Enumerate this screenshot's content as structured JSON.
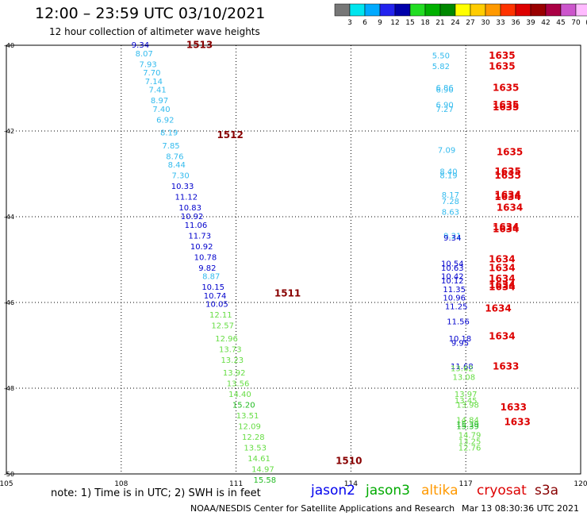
{
  "header": {
    "title": "12:00 – 23:59 UTC 03/10/2021",
    "subtitle": "12 hour collection of altimeter wave heights"
  },
  "footer": {
    "note": "note: 1) Time is in UTC; 2) SWH is in feet",
    "credit": "NOAA/NESDIS Center for Satellite Applications and Research",
    "timestamp": "Mar 13 08:30:36 UTC 2021",
    "satellites": [
      {
        "name": "jason2",
        "color": "#0000ee"
      },
      {
        "name": "jason3",
        "color": "#00aa00"
      },
      {
        "name": "altika",
        "color": "#ff9900"
      },
      {
        "name": "cryosat",
        "color": "#dd0000"
      },
      {
        "name": "s3a",
        "color": "#880000"
      }
    ]
  },
  "chart_data": {
    "type": "scatter",
    "xlim": [
      105,
      120
    ],
    "ylim": [
      -50,
      -40
    ],
    "x_ticks": [
      "105",
      "108",
      "111",
      "114",
      "117",
      "120"
    ],
    "y_ticks": [
      "-40",
      "-42",
      "-44",
      "-46",
      "-48",
      "-50"
    ],
    "grid": true,
    "legend": {
      "labels": [
        "3",
        "6",
        "9",
        "12",
        "15",
        "18",
        "21",
        "24",
        "27",
        "30",
        "33",
        "36",
        "39",
        "42",
        "45",
        "70",
        "(ft)"
      ],
      "colors": [
        "#777777",
        "#00e5ee",
        "#00aaff",
        "#2222ee",
        "#0000aa",
        "#22dd22",
        "#00b000",
        "#008800",
        "#ffff00",
        "#ffcc00",
        "#ff9900",
        "#ff3300",
        "#dd0000",
        "#990000",
        "#aa0044",
        "#cc55cc",
        "#ffbbff"
      ]
    },
    "color_scale": {
      "light_blue": "#33bbee",
      "dark_blue": "#0000cc",
      "green": "#66dd44",
      "time_label": "#880000",
      "cryosat_time": "#dd0000"
    },
    "track_labels": [
      {
        "text": "1513",
        "x": 109.7,
        "y": -40.0,
        "color": "#880000"
      },
      {
        "text": "1512",
        "x": 110.5,
        "y": -42.1,
        "color": "#880000"
      },
      {
        "text": "1511",
        "x": 112.0,
        "y": -45.8,
        "color": "#880000"
      },
      {
        "text": "1510",
        "x": 113.6,
        "y": -49.7,
        "color": "#880000"
      },
      {
        "text": "1635",
        "x": 117.6,
        "y": -40.25,
        "color": "#dd0000"
      },
      {
        "text": "1635",
        "x": 117.6,
        "y": -40.5,
        "color": "#dd0000"
      },
      {
        "text": "1635",
        "x": 117.7,
        "y": -41.0,
        "color": "#dd0000"
      },
      {
        "text": "1635",
        "x": 117.7,
        "y": -41.4,
        "color": "#dd0000"
      },
      {
        "text": "1635",
        "x": 117.7,
        "y": -41.45,
        "color": "#dd0000"
      },
      {
        "text": "1635",
        "x": 117.8,
        "y": -42.5,
        "color": "#dd0000"
      },
      {
        "text": "1635",
        "x": 117.75,
        "y": -42.95,
        "color": "#dd0000"
      },
      {
        "text": "1635",
        "x": 117.75,
        "y": -43.05,
        "color": "#dd0000"
      },
      {
        "text": "1634",
        "x": 117.75,
        "y": -43.5,
        "color": "#dd0000"
      },
      {
        "text": "1634",
        "x": 117.75,
        "y": -43.55,
        "color": "#dd0000"
      },
      {
        "text": "1634",
        "x": 117.8,
        "y": -43.8,
        "color": "#dd0000"
      },
      {
        "text": "1634",
        "x": 117.7,
        "y": -44.25,
        "color": "#dd0000"
      },
      {
        "text": "1634",
        "x": 117.7,
        "y": -44.3,
        "color": "#dd0000"
      },
      {
        "text": "1634",
        "x": 117.6,
        "y": -45.0,
        "color": "#dd0000"
      },
      {
        "text": "1634",
        "x": 117.6,
        "y": -45.2,
        "color": "#dd0000"
      },
      {
        "text": "1634",
        "x": 117.6,
        "y": -45.45,
        "color": "#dd0000"
      },
      {
        "text": "1634",
        "x": 117.6,
        "y": -45.6,
        "color": "#dd0000"
      },
      {
        "text": "1634",
        "x": 117.6,
        "y": -45.65,
        "color": "#dd0000"
      },
      {
        "text": "1634",
        "x": 117.5,
        "y": -46.15,
        "color": "#dd0000"
      },
      {
        "text": "1634",
        "x": 117.6,
        "y": -46.8,
        "color": "#dd0000"
      },
      {
        "text": "1633",
        "x": 117.7,
        "y": -47.5,
        "color": "#dd0000"
      },
      {
        "text": "1633",
        "x": 117.9,
        "y": -48.45,
        "color": "#dd0000"
      },
      {
        "text": "1633",
        "x": 118.0,
        "y": -48.8,
        "color": "#dd0000"
      }
    ],
    "series": [
      {
        "name": "track_west",
        "points": [
          {
            "x": 108.5,
            "y": -40.0,
            "v": "9.34",
            "c": "dark_blue"
          },
          {
            "x": 108.6,
            "y": -40.2,
            "v": "8.07",
            "c": "light_blue"
          },
          {
            "x": 108.7,
            "y": -40.45,
            "v": "7.93",
            "c": "light_blue"
          },
          {
            "x": 108.8,
            "y": -40.65,
            "v": "7.70",
            "c": "light_blue"
          },
          {
            "x": 108.85,
            "y": -40.85,
            "v": "7.14",
            "c": "light_blue"
          },
          {
            "x": 108.95,
            "y": -41.05,
            "v": "7.41",
            "c": "light_blue"
          },
          {
            "x": 109.0,
            "y": -41.3,
            "v": "8.97",
            "c": "light_blue"
          },
          {
            "x": 109.05,
            "y": -41.5,
            "v": "7.40",
            "c": "light_blue"
          },
          {
            "x": 109.15,
            "y": -41.75,
            "v": "6.92",
            "c": "light_blue"
          },
          {
            "x": 109.25,
            "y": -42.05,
            "v": "8.19",
            "c": "light_blue"
          },
          {
            "x": 109.3,
            "y": -42.35,
            "v": "7.85",
            "c": "light_blue"
          },
          {
            "x": 109.4,
            "y": -42.6,
            "v": "8.76",
            "c": "light_blue"
          },
          {
            "x": 109.45,
            "y": -42.8,
            "v": "8.44",
            "c": "light_blue"
          },
          {
            "x": 109.55,
            "y": -43.05,
            "v": "7.30",
            "c": "light_blue"
          },
          {
            "x": 109.6,
            "y": -43.3,
            "v": "10.33",
            "c": "dark_blue"
          },
          {
            "x": 109.7,
            "y": -43.55,
            "v": "11.12",
            "c": "dark_blue"
          },
          {
            "x": 109.8,
            "y": -43.8,
            "v": "10.83",
            "c": "dark_blue"
          },
          {
            "x": 109.85,
            "y": -44.0,
            "v": "10.92",
            "c": "dark_blue"
          },
          {
            "x": 109.95,
            "y": -44.2,
            "v": "11.06",
            "c": "dark_blue"
          },
          {
            "x": 110.05,
            "y": -44.45,
            "v": "11.73",
            "c": "dark_blue"
          },
          {
            "x": 110.1,
            "y": -44.7,
            "v": "10.92",
            "c": "dark_blue"
          },
          {
            "x": 110.2,
            "y": -44.95,
            "v": "10.78",
            "c": "dark_blue"
          },
          {
            "x": 110.25,
            "y": -45.2,
            "v": "9.82",
            "c": "dark_blue"
          },
          {
            "x": 110.35,
            "y": -45.4,
            "v": "8.87",
            "c": "light_blue"
          },
          {
            "x": 110.4,
            "y": -45.65,
            "v": "10.15",
            "c": "dark_blue"
          },
          {
            "x": 110.45,
            "y": -45.85,
            "v": "10.74",
            "c": "dark_blue"
          },
          {
            "x": 110.5,
            "y": -46.05,
            "v": "10.05",
            "c": "dark_blue"
          },
          {
            "x": 110.6,
            "y": -46.3,
            "v": "12.11",
            "c": "green"
          },
          {
            "x": 110.65,
            "y": -46.55,
            "v": "12.57",
            "c": "green"
          },
          {
            "x": 110.75,
            "y": -46.85,
            "v": "12.96",
            "c": "green"
          },
          {
            "x": 110.85,
            "y": -47.1,
            "v": "13.73",
            "c": "green"
          },
          {
            "x": 110.9,
            "y": -47.35,
            "v": "13.23",
            "c": "green"
          },
          {
            "x": 110.95,
            "y": -47.65,
            "v": "13.92",
            "c": "green"
          },
          {
            "x": 111.05,
            "y": -47.9,
            "v": "13.56",
            "c": "green"
          },
          {
            "x": 111.1,
            "y": -48.15,
            "v": "14.40",
            "c": "green"
          },
          {
            "x": 111.2,
            "y": -48.4,
            "v": "15.20",
            "c": "dark_green"
          },
          {
            "x": 111.3,
            "y": -48.65,
            "v": "13.51",
            "c": "green"
          },
          {
            "x": 111.35,
            "y": -48.9,
            "v": "12.09",
            "c": "green"
          },
          {
            "x": 111.45,
            "y": -49.15,
            "v": "12.28",
            "c": "green"
          },
          {
            "x": 111.5,
            "y": -49.4,
            "v": "13.53",
            "c": "green"
          },
          {
            "x": 111.6,
            "y": -49.65,
            "v": "14.61",
            "c": "green"
          },
          {
            "x": 111.7,
            "y": -49.9,
            "v": "14.97",
            "c": "green"
          },
          {
            "x": 111.75,
            "y": -50.15,
            "v": "15.58",
            "c": "dark_green"
          }
        ]
      },
      {
        "name": "track_east",
        "points": [
          {
            "x": 116.35,
            "y": -40.25,
            "v": "5.50",
            "c": "light_blue"
          },
          {
            "x": 116.35,
            "y": -40.5,
            "v": "5.82",
            "c": "light_blue"
          },
          {
            "x": 116.45,
            "y": -41.0,
            "v": "6.86",
            "c": "light_blue"
          },
          {
            "x": 116.45,
            "y": -41.05,
            "v": "6.90",
            "c": "light_blue"
          },
          {
            "x": 116.45,
            "y": -41.4,
            "v": "6.90",
            "c": "light_blue"
          },
          {
            "x": 116.45,
            "y": -41.5,
            "v": "7.27",
            "c": "light_blue"
          },
          {
            "x": 116.5,
            "y": -42.45,
            "v": "7.09",
            "c": "light_blue"
          },
          {
            "x": 116.55,
            "y": -42.95,
            "v": "8.40",
            "c": "light_blue"
          },
          {
            "x": 116.55,
            "y": -43.05,
            "v": "8.19",
            "c": "light_blue"
          },
          {
            "x": 116.6,
            "y": -43.5,
            "v": "8.17",
            "c": "light_blue"
          },
          {
            "x": 116.6,
            "y": -43.65,
            "v": "7.28",
            "c": "light_blue"
          },
          {
            "x": 116.6,
            "y": -43.9,
            "v": "8.63",
            "c": "light_blue"
          },
          {
            "x": 116.65,
            "y": -44.45,
            "v": "9.21",
            "c": "light_blue"
          },
          {
            "x": 116.65,
            "y": -44.5,
            "v": "9.34",
            "c": "dark_blue"
          },
          {
            "x": 116.65,
            "y": -45.1,
            "v": "10.54",
            "c": "dark_blue"
          },
          {
            "x": 116.65,
            "y": -45.2,
            "v": "10.63",
            "c": "dark_blue"
          },
          {
            "x": 116.65,
            "y": -45.4,
            "v": "10.42",
            "c": "dark_blue"
          },
          {
            "x": 116.65,
            "y": -45.5,
            "v": "10.12",
            "c": "dark_blue"
          },
          {
            "x": 116.7,
            "y": -45.7,
            "v": "11.35",
            "c": "dark_blue"
          },
          {
            "x": 116.7,
            "y": -45.9,
            "v": "10.96",
            "c": "dark_blue"
          },
          {
            "x": 116.75,
            "y": -46.1,
            "v": "11.25",
            "c": "dark_blue"
          },
          {
            "x": 116.8,
            "y": -46.45,
            "v": "11.56",
            "c": "dark_blue"
          },
          {
            "x": 116.85,
            "y": -46.85,
            "v": "10.18",
            "c": "dark_blue"
          },
          {
            "x": 116.85,
            "y": -46.95,
            "v": "9.95",
            "c": "dark_blue"
          },
          {
            "x": 116.9,
            "y": -47.5,
            "v": "11.68",
            "c": "dark_blue"
          },
          {
            "x": 116.9,
            "y": -47.55,
            "v": "13.62",
            "c": "green"
          },
          {
            "x": 116.95,
            "y": -47.75,
            "v": "13.08",
            "c": "green"
          },
          {
            "x": 117.0,
            "y": -48.15,
            "v": "13.97",
            "c": "green"
          },
          {
            "x": 117.0,
            "y": -48.3,
            "v": "13.45",
            "c": "green"
          },
          {
            "x": 117.05,
            "y": -48.4,
            "v": "13.98",
            "c": "green"
          },
          {
            "x": 117.05,
            "y": -48.75,
            "v": "14.84",
            "c": "green"
          },
          {
            "x": 117.05,
            "y": -48.85,
            "v": "15.39",
            "c": "dark_green"
          },
          {
            "x": 117.05,
            "y": -48.9,
            "v": "15.39",
            "c": "dark_green"
          },
          {
            "x": 117.1,
            "y": -49.1,
            "v": "14.79",
            "c": "green"
          },
          {
            "x": 117.1,
            "y": -49.25,
            "v": "13.25",
            "c": "green"
          },
          {
            "x": 117.1,
            "y": -49.4,
            "v": "12.76",
            "c": "green"
          }
        ]
      }
    ]
  }
}
